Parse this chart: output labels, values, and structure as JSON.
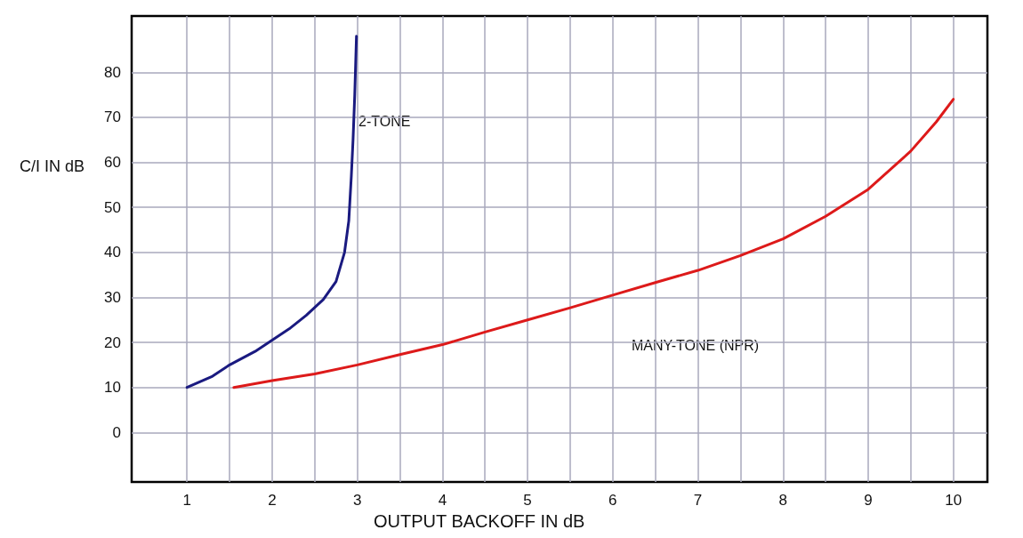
{
  "chart_data": {
    "type": "line",
    "xlabel": "OUTPUT BACKOFF IN dB",
    "ylabel": "C/I IN dB",
    "xlim": [
      0.35,
      10.4
    ],
    "ylim": [
      -11,
      92.5
    ],
    "xticks": [
      1,
      {
        "value": 1.5,
        "label": null
      },
      2,
      {
        "value": 2.5,
        "label": null
      },
      3,
      {
        "value": 3.5,
        "label": null
      },
      4,
      {
        "value": 4.5,
        "label": null
      },
      5,
      {
        "value": 5.5,
        "label": null
      },
      6,
      {
        "value": 6.5,
        "label": null
      },
      7,
      {
        "value": 7.5,
        "label": null
      },
      8,
      {
        "value": 8.5,
        "label": null
      },
      9,
      {
        "value": 9.5,
        "label": null
      },
      10
    ],
    "yticks": [
      0,
      10,
      20,
      30,
      40,
      50,
      60,
      70,
      80
    ],
    "grid": true,
    "marker": "none",
    "line_style": "solid",
    "series": [
      {
        "color": "#1a1a80",
        "x": [
          1,
          1.3,
          1.5,
          1.8,
          2,
          2.2,
          2.4,
          2.6,
          2.75,
          2.85,
          2.9,
          2.93,
          2.95,
          2.97,
          2.99
        ],
        "values": [
          10,
          12.5,
          15,
          18,
          20.5,
          23,
          26,
          29.5,
          33.5,
          40,
          47,
          57,
          65,
          75,
          88
        ]
      },
      {
        "color": "#dd1a1a",
        "x": [
          1.55,
          2,
          2.5,
          3,
          3.5,
          4,
          4.5,
          5,
          5.5,
          6,
          6.5,
          7,
          7.5,
          8,
          8.5,
          9,
          9.5,
          9.8,
          10
        ],
        "values": [
          10,
          11.5,
          13,
          15,
          17.3,
          19.5,
          22.3,
          25,
          27.7,
          30.5,
          33.3,
          36,
          39.3,
          43,
          48,
          54,
          62.5,
          69,
          74
        ]
      }
    ],
    "annotations": [
      "2-TONE",
      "MANY-TONE (NPR)"
    ]
  }
}
